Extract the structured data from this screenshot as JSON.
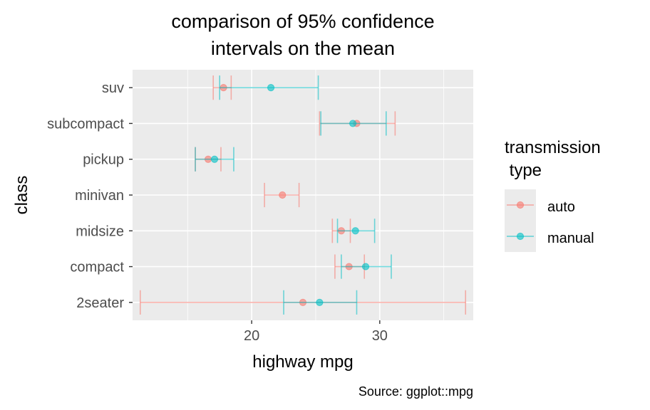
{
  "title_lines": [
    "comparison of 95% confidence",
    "intervals on the mean"
  ],
  "caption": "Source: ggplot::mpg",
  "legend": {
    "title_lines": [
      "transmission",
      " type"
    ],
    "items": [
      {
        "label": "auto",
        "color": "#F8766D"
      },
      {
        "label": "manual",
        "color": "#00BFC4"
      }
    ]
  },
  "chart_data": {
    "type": "errorbar",
    "title": "comparison of 95% confidence intervals on the mean",
    "xlabel": "highway mpg",
    "ylabel": "class",
    "xlim": [
      10.7,
      37.3
    ],
    "xticks": [
      20,
      30
    ],
    "categories": [
      "2seater",
      "compact",
      "midsize",
      "minivan",
      "pickup",
      "subcompact",
      "suv"
    ],
    "grid": true,
    "legend_position": "right",
    "series": [
      {
        "name": "auto",
        "color": "#F8766D",
        "points": [
          {
            "category": "2seater",
            "mean": 24.0,
            "low": 11.3,
            "high": 36.7
          },
          {
            "category": "compact",
            "mean": 27.6,
            "low": 26.5,
            "high": 28.8
          },
          {
            "category": "midsize",
            "mean": 27.0,
            "low": 26.3,
            "high": 27.7
          },
          {
            "category": "minivan",
            "mean": 22.4,
            "low": 21.0,
            "high": 23.7
          },
          {
            "category": "pickup",
            "mean": 16.6,
            "low": 15.6,
            "high": 17.6
          },
          {
            "category": "subcompact",
            "mean": 28.2,
            "low": 25.3,
            "high": 31.2
          },
          {
            "category": "suv",
            "mean": 17.8,
            "low": 17.0,
            "high": 18.4
          }
        ]
      },
      {
        "name": "manual",
        "color": "#00BFC4",
        "points": [
          {
            "category": "2seater",
            "mean": 25.3,
            "low": 22.5,
            "high": 28.2
          },
          {
            "category": "compact",
            "mean": 28.9,
            "low": 27.0,
            "high": 30.9
          },
          {
            "category": "midsize",
            "mean": 28.1,
            "low": 26.7,
            "high": 29.6
          },
          {
            "category": "pickup",
            "mean": 17.1,
            "low": 15.6,
            "high": 18.6
          },
          {
            "category": "subcompact",
            "mean": 27.9,
            "low": 25.4,
            "high": 30.5
          },
          {
            "category": "suv",
            "mean": 21.5,
            "low": 17.5,
            "high": 25.2
          }
        ]
      }
    ]
  }
}
